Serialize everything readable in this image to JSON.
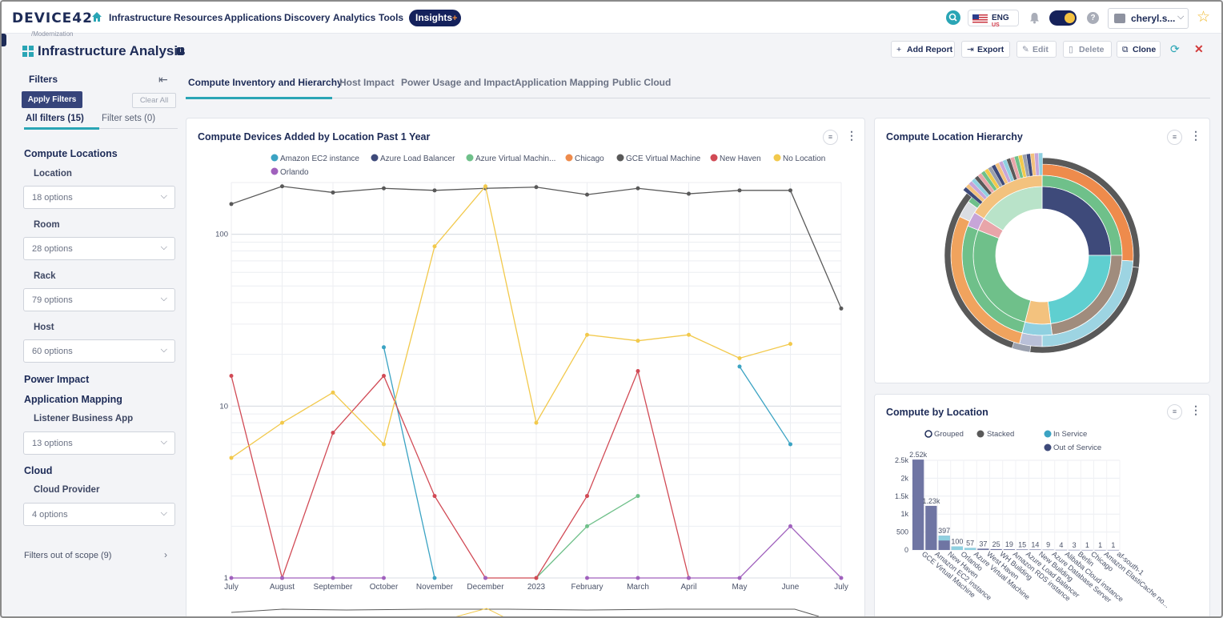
{
  "app": {
    "logo": "DEVICE42"
  },
  "nav": {
    "items": [
      {
        "label": "Infrastructure"
      },
      {
        "label": "Resources"
      },
      {
        "label": "Applications"
      },
      {
        "label": "Discovery"
      },
      {
        "label": "Analytics"
      },
      {
        "label": "Tools"
      }
    ],
    "insights_label": "Insights",
    "insights_suffix": "+",
    "lang": "ENG",
    "lang_region": "US",
    "user": "cheryl.s..."
  },
  "header": {
    "breadcrumb": "/Modernization",
    "title": "Infrastructure Analysis",
    "badge": "i",
    "buttons": {
      "add_report": "Add Report",
      "export": "Export",
      "edit": "Edit",
      "delete": "Delete",
      "clone": "Clone"
    }
  },
  "filters": {
    "title": "Filters",
    "apply": "Apply Filters",
    "clear": "Clear All",
    "tab_all": "All filters (15)",
    "tab_sets": "Filter sets (0)",
    "sections": {
      "compute_locations": "Compute Locations",
      "power_impact": "Power Impact",
      "application_mapping": "Application Mapping",
      "cloud": "Cloud"
    },
    "fields": {
      "location": {
        "label": "Location",
        "value": "18 options"
      },
      "room": {
        "label": "Room",
        "value": "28 options"
      },
      "rack": {
        "label": "Rack",
        "value": "79 options"
      },
      "host": {
        "label": "Host",
        "value": "60 options"
      },
      "listener": {
        "label": "Listener Business App",
        "value": "13 options"
      },
      "cloud_provider": {
        "label": "Cloud Provider",
        "value": "4 options"
      }
    },
    "out_of_scope": "Filters out of scope (9)"
  },
  "report_tabs": [
    {
      "label": "Compute Inventory and Hierarchy",
      "active": true
    },
    {
      "label": "Host Impact"
    },
    {
      "label": "Power Usage and Impact"
    },
    {
      "label": "Application Mapping"
    },
    {
      "label": "Public Cloud"
    }
  ],
  "cards": {
    "line_chart_title": "Compute Devices Added by Location Past 1 Year",
    "hierarchy_title": "Compute Location Hierarchy",
    "bar_title": "Compute by Location",
    "bar_mode": {
      "grouped": "Grouped",
      "stacked": "Stacked"
    }
  },
  "colors": {
    "accent": "#2aa5b5",
    "brand": "#1d2b57",
    "series": {
      "Amazon EC2 instance": "#3ba3c3",
      "Azure Load Balancer": "#3e4a7a",
      "Azure Virtual Machin...": "#6fc08a",
      "Chicago": "#ee8b4c",
      "GCE Virtual Machine": "#595959",
      "New Haven": "#d14a55",
      "No Location": "#f2c94c",
      "Orlando": "#a061bd"
    }
  },
  "chart_data": [
    {
      "type": "line",
      "title": "Compute Devices Added by Location Past 1 Year",
      "y_scale": "log",
      "ylim": [
        1,
        200
      ],
      "y_ticks": [
        "100",
        "10",
        "1"
      ],
      "x": [
        "July",
        "August",
        "September",
        "October",
        "November",
        "December",
        "2023",
        "February",
        "March",
        "April",
        "May",
        "June",
        "July"
      ],
      "series": [
        {
          "name": "Amazon EC2 instance",
          "values": [
            null,
            null,
            null,
            22,
            1,
            null,
            null,
            null,
            null,
            null,
            17,
            6,
            null
          ]
        },
        {
          "name": "Azure Load Balancer",
          "values": [
            null,
            null,
            null,
            null,
            null,
            null,
            null,
            null,
            null,
            null,
            null,
            null,
            null
          ]
        },
        {
          "name": "Azure Virtual Machin...",
          "values": [
            null,
            null,
            null,
            null,
            null,
            null,
            1,
            2,
            3,
            null,
            null,
            null,
            null
          ]
        },
        {
          "name": "Chicago",
          "values": [
            null,
            null,
            null,
            null,
            null,
            null,
            null,
            null,
            null,
            null,
            null,
            null,
            null
          ]
        },
        {
          "name": "GCE Virtual Machine",
          "values": [
            150,
            190,
            175,
            185,
            180,
            185,
            188,
            170,
            185,
            172,
            180,
            180,
            37
          ]
        },
        {
          "name": "New Haven",
          "values": [
            15,
            1,
            7,
            15,
            3,
            1,
            1,
            3,
            16,
            1,
            null,
            null,
            null
          ]
        },
        {
          "name": "No Location",
          "values": [
            5,
            8,
            12,
            6,
            85,
            190,
            8,
            26,
            24,
            26,
            19,
            23,
            null
          ]
        },
        {
          "name": "Orlando",
          "values": [
            1,
            1,
            1,
            1,
            null,
            1,
            null,
            1,
            1,
            1,
            1,
            2,
            1
          ]
        }
      ]
    },
    {
      "type": "sunburst",
      "title": "Compute Location Hierarchy",
      "inner_ring": [
        {
          "color": "#3e4a7a",
          "share": 0.25
        },
        {
          "color": "#5fcfd0",
          "share": 0.23
        },
        {
          "color": "#f3c27e",
          "share": 0.06
        },
        {
          "color": "#6fc08a",
          "share": 0.27
        },
        {
          "color": "#e8a5a9",
          "share": 0.03
        },
        {
          "color": "#b9e3c9",
          "share": 0.16
        }
      ]
    },
    {
      "type": "bar",
      "title": "Compute by Location",
      "legend": [
        "In Service",
        "Out of Service"
      ],
      "categories": [
        "GCE Virtual Machine",
        "Amazon EC2 instance",
        "New Haven",
        "Orlando",
        "Azure Virtual Machine",
        "West Haven",
        "WH Building",
        "Amazon RDS instance",
        "Azure Load Balancer",
        "New Building",
        "Azure Database Server",
        "Alibaba Cloud instance",
        "Berlin",
        "Chicago",
        "Amazon ElastiCache no...",
        "af-south-1"
      ],
      "values": [
        2520,
        1230,
        397,
        100,
        57,
        37,
        25,
        19,
        15,
        14,
        9,
        4,
        3,
        1,
        1,
        1
      ],
      "labels": [
        "2.52k",
        "1.23k",
        "397",
        "100",
        "57",
        "37",
        "25",
        "19",
        "15",
        "14",
        "9",
        "4",
        "3",
        "1",
        "1",
        "1"
      ],
      "y_ticks": [
        "2.5k",
        "2k",
        "1.5k",
        "1k",
        "500",
        "0"
      ],
      "ylim": [
        0,
        2500
      ]
    }
  ]
}
